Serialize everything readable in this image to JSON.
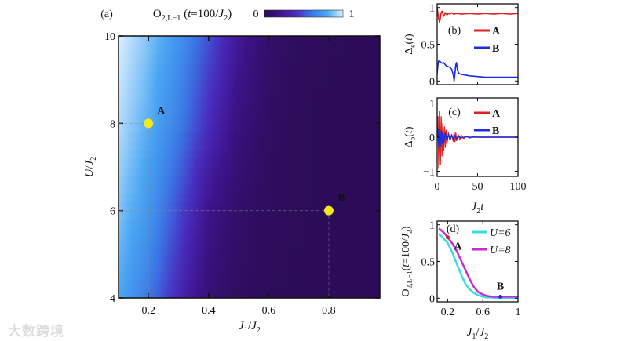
{
  "watermark": "大数跨境",
  "chart_data": [
    {
      "id": "a",
      "type": "heatmap",
      "panel_label": "(a)",
      "title": [
        [
          "O",
          ""
        ],
        [
          "2,L−1",
          "sub"
        ],
        [
          " (",
          ""
        ],
        [
          "t",
          "i"
        ],
        [
          "=100/",
          ""
        ],
        [
          "J",
          "i"
        ],
        [
          "2",
          "sub"
        ],
        [
          ")",
          ""
        ]
      ],
      "colorbar": {
        "min_label": "0",
        "max_label": "1",
        "range": [
          0,
          1
        ],
        "colors": [
          "#2b0c55",
          "#3d138a",
          "#4a2cc0",
          "#3a78e6",
          "#48a6f2",
          "#dcefff"
        ]
      },
      "xlabel": [
        [
          "J",
          "i"
        ],
        [
          "1",
          "sub"
        ],
        [
          "/",
          ""
        ],
        [
          "J",
          "i"
        ],
        [
          "2",
          "sub"
        ]
      ],
      "ylabel": [
        [
          "U",
          "i"
        ],
        [
          "/",
          ""
        ],
        [
          "J",
          "i"
        ],
        [
          "2",
          "sub"
        ]
      ],
      "xlim": [
        0.1,
        0.97
      ],
      "ylim": [
        4,
        10
      ],
      "xticks": [
        "0.2",
        "0.4",
        "0.6",
        "0.8"
      ],
      "yticks": [
        "4",
        "6",
        "8",
        "10"
      ],
      "x": [
        0.1,
        0.2,
        0.3,
        0.4,
        0.5,
        0.6,
        0.7,
        0.8,
        0.9,
        0.97
      ],
      "y": [
        4,
        6,
        8,
        10
      ],
      "z": [
        [
          0.8,
          0.62,
          0.35,
          0.12,
          0.04,
          0.02,
          0.01,
          0.01,
          0.01,
          0.01
        ],
        [
          0.88,
          0.74,
          0.48,
          0.2,
          0.07,
          0.03,
          0.02,
          0.01,
          0.01,
          0.01
        ],
        [
          0.95,
          0.82,
          0.64,
          0.38,
          0.15,
          0.05,
          0.02,
          0.01,
          0.01,
          0.01
        ],
        [
          1.0,
          0.88,
          0.72,
          0.5,
          0.24,
          0.08,
          0.03,
          0.02,
          0.01,
          0.01
        ]
      ],
      "points": [
        {
          "label": "A",
          "x": 0.2,
          "y": 8
        },
        {
          "label": "B",
          "x": 0.8,
          "y": 6
        }
      ],
      "point_color": "#f2e820"
    },
    {
      "id": "b",
      "type": "line",
      "panel_label": "(b)",
      "ylabel": [
        [
          "Δ",
          ""
        ],
        [
          "e",
          "sub"
        ],
        [
          "(",
          ""
        ],
        [
          "t",
          "i"
        ],
        [
          ")",
          ""
        ]
      ],
      "xlim": [
        0,
        100
      ],
      "ylim": [
        -0.05,
        1.05
      ],
      "yticks": [
        "0",
        "0.5",
        "1"
      ],
      "series": [
        {
          "name": "A",
          "color": "#e02020",
          "t": [
            0,
            1,
            2,
            3,
            4,
            5,
            6,
            7,
            8,
            9,
            10,
            12,
            14,
            16,
            18,
            20,
            25,
            30,
            40,
            50,
            60,
            70,
            80,
            90,
            100
          ],
          "values": [
            1.0,
            0.92,
            0.84,
            0.8,
            0.86,
            0.93,
            0.95,
            0.92,
            0.88,
            0.9,
            0.93,
            0.9,
            0.92,
            0.91,
            0.93,
            0.91,
            0.92,
            0.91,
            0.92,
            0.91,
            0.92,
            0.91,
            0.92,
            0.91,
            0.92
          ]
        },
        {
          "name": "B",
          "color": "#1a2ee0",
          "t": [
            0,
            1,
            2,
            4,
            6,
            8,
            10,
            12,
            15,
            18,
            20,
            21,
            22,
            23,
            24,
            25,
            27,
            30,
            35,
            40,
            50,
            60,
            70,
            80,
            90,
            100
          ],
          "values": [
            0.1,
            0.22,
            0.28,
            0.26,
            0.24,
            0.25,
            0.22,
            0.2,
            0.19,
            0.16,
            0.08,
            0.0,
            0.1,
            0.22,
            0.25,
            0.15,
            0.1,
            0.09,
            0.08,
            0.07,
            0.06,
            0.05,
            0.05,
            0.05,
            0.05,
            0.05
          ]
        }
      ]
    },
    {
      "id": "c",
      "type": "line",
      "panel_label": "(c)",
      "ylabel": [
        [
          "Δ",
          ""
        ],
        [
          "b",
          "sub"
        ],
        [
          "(",
          ""
        ],
        [
          "t",
          "i"
        ],
        [
          ")",
          ""
        ]
      ],
      "xlabel": [
        [
          "J",
          "i"
        ],
        [
          "2",
          "sub"
        ],
        [
          "t",
          "i"
        ]
      ],
      "xlim": [
        0,
        100
      ],
      "ylim": [
        -1.15,
        1.15
      ],
      "xticks": [
        "0",
        "50",
        "100"
      ],
      "yticks": [
        "−1",
        "0",
        "1"
      ],
      "xtick_values": [
        0,
        50,
        100
      ],
      "ytick_values": [
        -1,
        0,
        1
      ],
      "series": [
        {
          "name": "A",
          "color": "#e02020",
          "t": [
            0,
            1,
            2,
            3,
            4,
            5,
            6,
            7,
            8,
            9,
            10,
            11,
            12,
            14,
            16,
            18,
            20,
            21,
            22,
            23,
            24,
            26,
            28,
            30,
            33,
            36,
            40,
            45,
            50,
            60,
            80,
            100
          ],
          "values": [
            0,
            0.6,
            -0.9,
            0.75,
            -0.8,
            0.6,
            -0.55,
            0.4,
            -0.4,
            0.3,
            -0.3,
            0.2,
            -0.2,
            0.12,
            -0.1,
            0.08,
            -0.12,
            0.14,
            -0.13,
            0.12,
            -0.1,
            0.07,
            -0.06,
            0.05,
            -0.04,
            0.03,
            -0.02,
            0.01,
            0,
            0,
            0,
            0
          ]
        },
        {
          "name": "B",
          "color": "#1a2ee0",
          "t": [
            0,
            1,
            2,
            3,
            4,
            5,
            6,
            7,
            8,
            10,
            12,
            14,
            16,
            18,
            20,
            22,
            24,
            26,
            30,
            35,
            40,
            50,
            100
          ],
          "values": [
            0,
            0.25,
            -0.3,
            0.22,
            -0.25,
            0.18,
            -0.2,
            0.15,
            -0.15,
            0.12,
            -0.1,
            0.08,
            -0.08,
            0.06,
            -0.06,
            0.05,
            -0.04,
            0.03,
            -0.02,
            0.01,
            0,
            0,
            0
          ]
        }
      ]
    },
    {
      "id": "d",
      "type": "line",
      "panel_label": "(d)",
      "ylabel": [
        [
          "O",
          ""
        ],
        [
          "2,L−1",
          "sub"
        ],
        [
          "(",
          ""
        ],
        [
          "t",
          "i"
        ],
        [
          "=100/",
          ""
        ],
        [
          "J",
          "i"
        ],
        [
          "2",
          "sub"
        ],
        [
          ")",
          ""
        ]
      ],
      "xlabel": [
        [
          "J",
          "i"
        ],
        [
          "1",
          "sub"
        ],
        [
          "/",
          ""
        ],
        [
          "J",
          "i"
        ],
        [
          "2",
          "sub"
        ]
      ],
      "xlim": [
        0.08,
        1
      ],
      "ylim": [
        -0.05,
        1.05
      ],
      "xticks": [
        "0.2",
        "0.6",
        "1"
      ],
      "xtick_values": [
        0.2,
        0.6,
        1
      ],
      "yticks": [
        "0",
        "0.5",
        "1"
      ],
      "ytick_values": [
        0,
        0.5,
        1
      ],
      "series": [
        {
          "name": "U=6",
          "color": "#38dde0",
          "x": [
            0.1,
            0.15,
            0.2,
            0.25,
            0.3,
            0.35,
            0.4,
            0.45,
            0.5,
            0.55,
            0.6,
            0.65,
            0.7,
            0.8,
            0.9,
            1.0
          ],
          "values": [
            0.88,
            0.82,
            0.75,
            0.63,
            0.48,
            0.33,
            0.2,
            0.12,
            0.07,
            0.04,
            0.02,
            0.01,
            0.01,
            0.0,
            0.0,
            0.0
          ]
        },
        {
          "name": "U=8",
          "color": "#c62ed0",
          "x": [
            0.1,
            0.15,
            0.2,
            0.25,
            0.3,
            0.35,
            0.4,
            0.45,
            0.5,
            0.55,
            0.6,
            0.65,
            0.7,
            0.8,
            0.9,
            1.0
          ],
          "values": [
            0.95,
            0.9,
            0.83,
            0.75,
            0.65,
            0.52,
            0.39,
            0.26,
            0.15,
            0.08,
            0.05,
            0.03,
            0.02,
            0.02,
            0.02,
            0.02
          ]
        }
      ],
      "points": [
        {
          "label": "A",
          "x": 0.2,
          "y": 0.83,
          "color": "#e02020"
        },
        {
          "label": "B",
          "x": 0.8,
          "y": 0.02,
          "color": "#1a2ee0"
        }
      ]
    }
  ]
}
